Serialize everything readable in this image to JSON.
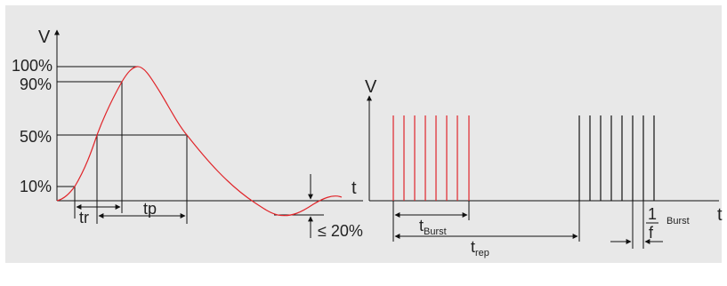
{
  "left_diagram": {
    "axis_v": "V",
    "axis_t": "t",
    "level_100": "100%",
    "level_90": "90%",
    "level_50": "50%",
    "level_10": "10%",
    "rise_label": "tr",
    "pulse_label": "tp",
    "undershoot_label": "≤ 20%"
  },
  "right_diagram": {
    "axis_v": "V",
    "axis_t": "t",
    "burst_t": "t",
    "burst_sub": "Burst",
    "rep_t": "t",
    "rep_sub": "rep",
    "freq_num": "1",
    "freq_den": "f",
    "freq_sub": "Burst"
  },
  "colors": {
    "pulse_curve": "#e0252a",
    "burst1": "#e0252a",
    "burst2": "#111111",
    "lines": "#111111",
    "panel_bg": "#e8e8e8"
  }
}
